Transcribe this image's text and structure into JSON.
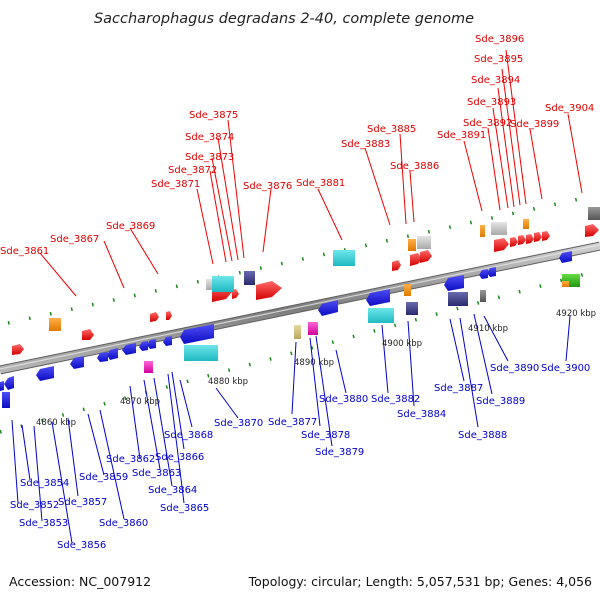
{
  "title": "Saccharophagus degradans 2-40, complete genome",
  "footer": {
    "accession": "Accession: NC_007912",
    "summary": "Topology: circular; Length: 5,057,531 bp; Genes: 4,056"
  },
  "scale_ticks": [
    "4860 kbp",
    "4870 kbp",
    "4880 kbp",
    "4890 kbp",
    "4900 kbp",
    "4910 kbp",
    "4920 kbp"
  ],
  "top_labels": [
    "Sde_3861",
    "Sde_3867",
    "Sde_3869",
    "Sde_3871",
    "Sde_3872",
    "Sde_3873",
    "Sde_3874",
    "Sde_3875",
    "Sde_3876",
    "Sde_3881",
    "Sde_3883",
    "Sde_3885",
    "Sde_3886",
    "Sde_3891",
    "Sde_3892",
    "Sde_3893",
    "Sde_3894",
    "Sde_3895",
    "Sde_3896",
    "Sde_3899",
    "Sde_3904"
  ],
  "bottom_labels": [
    "Sde_3852",
    "Sde_3853",
    "Sde_3854",
    "Sde_3856",
    "Sde_3857",
    "Sde_3859",
    "Sde_3860",
    "Sde_3862",
    "Sde_3863",
    "Sde_3864",
    "Sde_3865",
    "Sde_3866",
    "Sde_3868",
    "Sde_3870",
    "Sde_3877",
    "Sde_3878",
    "Sde_3879",
    "Sde_3880",
    "Sde_3882",
    "Sde_3884",
    "Sde_3887",
    "Sde_3888",
    "Sde_3889",
    "Sde_3890",
    "Sde_3900"
  ],
  "colors": {
    "forward_gene": "#ee0000",
    "reverse_gene": "#1a1ae6",
    "top_leader": "#ee0000",
    "bottom_leader": "#0000cc",
    "backbone": "#888888",
    "tick": "#1a8a1a"
  }
}
